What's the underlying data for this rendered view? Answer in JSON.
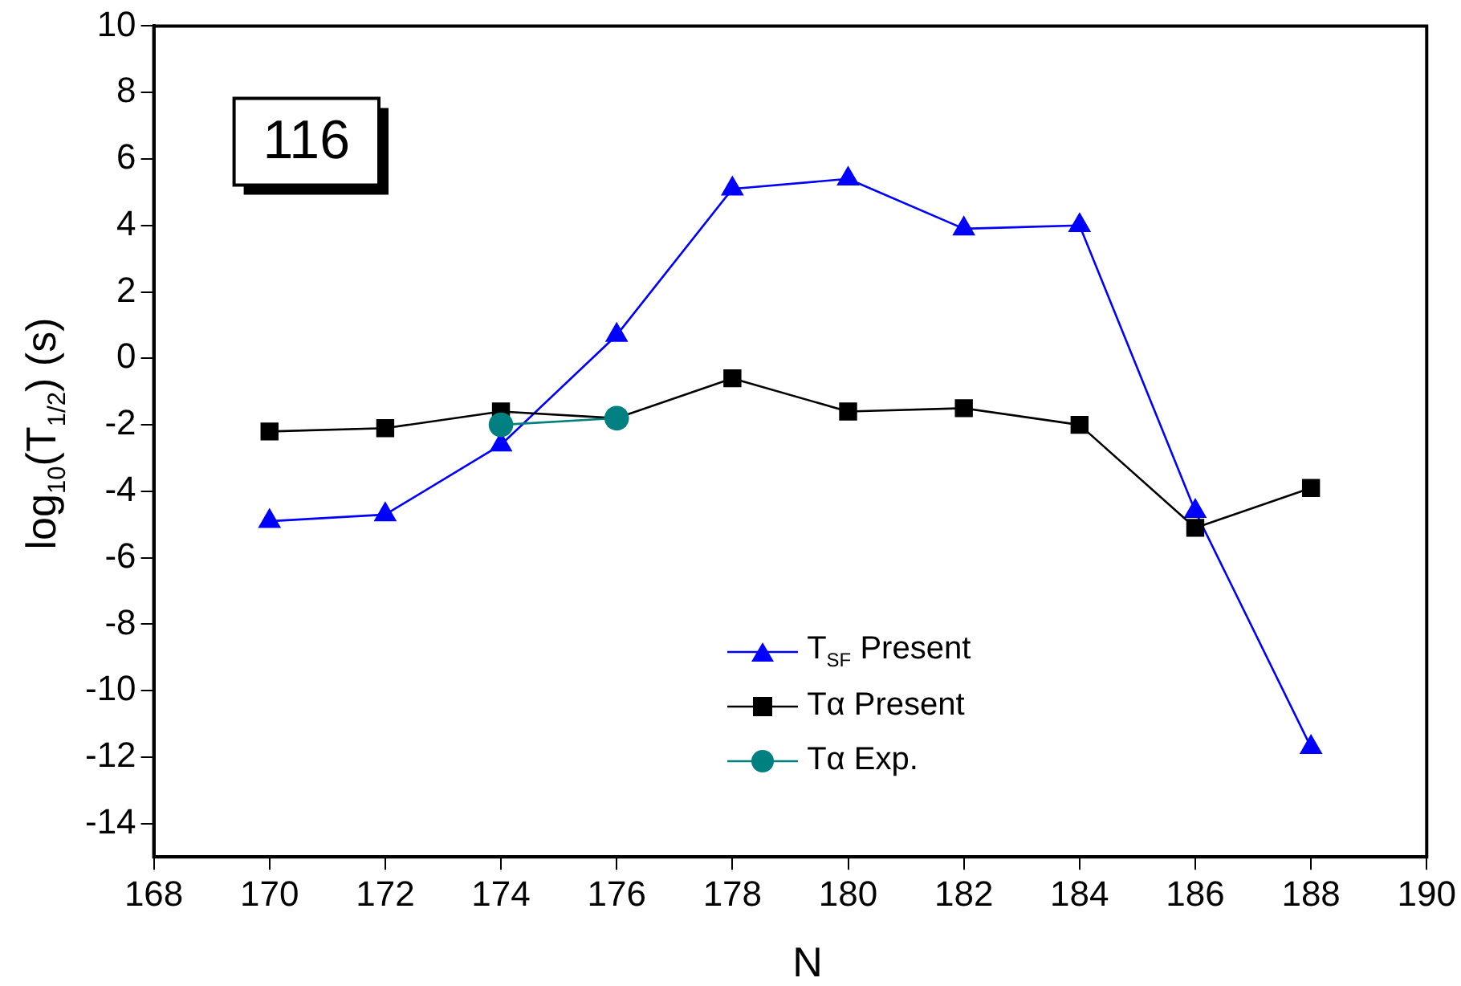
{
  "chart_data": {
    "type": "line",
    "xlabel": "N",
    "ylabel": "log$_{10}$(T$_{1/2}$) (s)",
    "annotations": [
      "116"
    ],
    "xlim": [
      168,
      190
    ],
    "xticks": [
      168,
      170,
      172,
      174,
      176,
      178,
      180,
      182,
      184,
      186,
      188,
      190
    ],
    "ylim": [
      -15,
      10
    ],
    "yticks": [
      -14,
      -12,
      -10,
      -8,
      -6,
      -4,
      -2,
      0,
      2,
      4,
      6,
      8,
      10
    ],
    "grid": false,
    "legend": "bottom",
    "line_style": "solid",
    "series": [
      {
        "name": "T$_{SF}$ Present",
        "color": "#0000ff",
        "marker": "triangle",
        "x": [
          170,
          172,
          174,
          176,
          178,
          180,
          182,
          184,
          186,
          188
        ],
        "values": [
          -4.9,
          -4.7,
          -2.6,
          0.7,
          5.1,
          5.4,
          3.9,
          4.0,
          -4.6,
          -11.7
        ]
      },
      {
        "name": "Tα  Present",
        "color": "#000000",
        "marker": "square",
        "x": [
          170,
          172,
          174,
          176,
          178,
          180,
          182,
          184,
          186,
          188
        ],
        "values": [
          -2.2,
          -2.1,
          -1.6,
          -1.8,
          -0.6,
          -1.6,
          -1.5,
          -2.0,
          -5.1,
          -3.9
        ]
      },
      {
        "name": "Tα  Exp.",
        "color": "#008080",
        "marker": "circle",
        "x": [
          174,
          176
        ],
        "values": [
          -2.0,
          -1.8
        ]
      }
    ]
  }
}
